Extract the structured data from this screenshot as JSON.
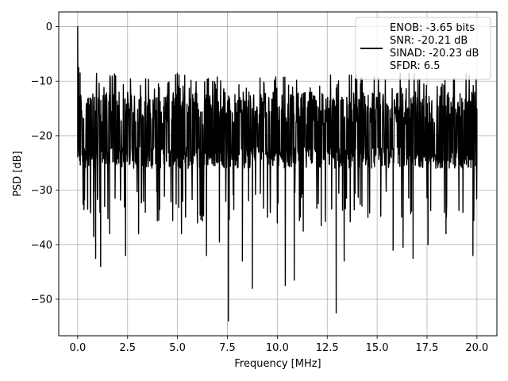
{
  "chart_data": {
    "type": "line",
    "title": "",
    "xlabel": "Frequency [MHz]",
    "ylabel": "PSD [dB]",
    "xlim": [
      -0.95,
      21.0
    ],
    "ylim": [
      -56.7,
      2.7
    ],
    "x_ticks": [
      0.0,
      2.5,
      5.0,
      7.5,
      10.0,
      12.5,
      15.0,
      17.5,
      20.0
    ],
    "x_tick_labels": [
      "0.0",
      "2.5",
      "5.0",
      "7.5",
      "10.0",
      "12.5",
      "15.0",
      "17.5",
      "20.0"
    ],
    "y_ticks": [
      0,
      -10,
      -20,
      -30,
      -40,
      -50
    ],
    "y_tick_labels": [
      "0",
      "−10",
      "−20",
      "−30",
      "−40",
      "−50"
    ],
    "grid": true,
    "legend_position": "top-right",
    "line_color": "#000000",
    "series": [
      {
        "name": "ENOB: -3.65 bits\nSNR: -20.21 dB\nSINAD: -20.23 dB\nSFDR: 6.5",
        "x_range": [
          0.0,
          20.0
        ],
        "notable_points": [
          {
            "x": 0.0,
            "y": 0.0
          },
          {
            "x": 0.05,
            "y": -7.5
          },
          {
            "x": 0.12,
            "y": -8.5
          },
          {
            "x": 0.5,
            "y": -33.5
          },
          {
            "x": 0.65,
            "y": -33
          },
          {
            "x": 0.8,
            "y": -38.5
          },
          {
            "x": 0.9,
            "y": -42.5
          },
          {
            "x": 1.15,
            "y": -44
          },
          {
            "x": 1.35,
            "y": -33
          },
          {
            "x": 1.6,
            "y": -38
          },
          {
            "x": 2.4,
            "y": -42
          },
          {
            "x": 3.05,
            "y": -38
          },
          {
            "x": 5.2,
            "y": -38
          },
          {
            "x": 6.0,
            "y": -36
          },
          {
            "x": 6.45,
            "y": -42
          },
          {
            "x": 7.1,
            "y": -39.5
          },
          {
            "x": 7.55,
            "y": -54
          },
          {
            "x": 8.25,
            "y": -43
          },
          {
            "x": 8.75,
            "y": -48
          },
          {
            "x": 10.0,
            "y": -36
          },
          {
            "x": 10.4,
            "y": -47.5
          },
          {
            "x": 10.85,
            "y": -46.5
          },
          {
            "x": 11.3,
            "y": -37.5
          },
          {
            "x": 12.2,
            "y": -36.5
          },
          {
            "x": 12.95,
            "y": -52.5
          },
          {
            "x": 13.35,
            "y": -43
          },
          {
            "x": 15.8,
            "y": -41
          },
          {
            "x": 16.3,
            "y": -40.5
          },
          {
            "x": 16.8,
            "y": -42.5
          },
          {
            "x": 17.55,
            "y": -40
          },
          {
            "x": 18.45,
            "y": -38
          },
          {
            "x": 19.8,
            "y": -42
          },
          {
            "x": 20.0,
            "y": -15
          }
        ],
        "typical_band": [
          -28,
          -12
        ],
        "peak_band_top": -8.5
      }
    ]
  }
}
